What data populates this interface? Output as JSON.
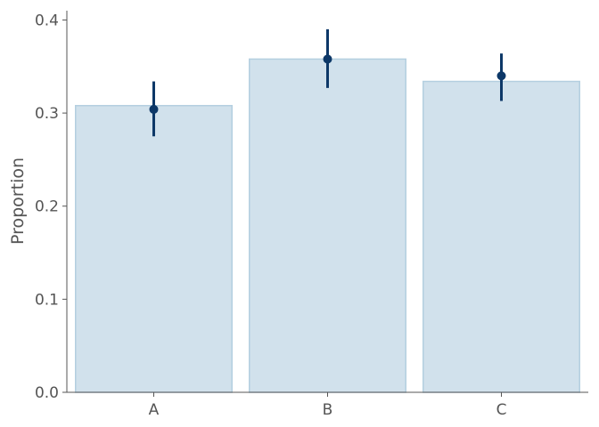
{
  "chart_data": {
    "type": "bar",
    "title": "",
    "xlabel": "",
    "ylabel": "Proportion",
    "categories": [
      "A",
      "B",
      "C"
    ],
    "bar_values": [
      0.308,
      0.358,
      0.334
    ],
    "point_estimates": [
      0.304,
      0.358,
      0.34
    ],
    "error_low": [
      0.275,
      0.327,
      0.313
    ],
    "error_high": [
      0.334,
      0.39,
      0.364
    ],
    "ylim": [
      0,
      0.41
    ],
    "yticks": [
      0.0,
      0.1,
      0.2,
      0.3,
      0.4
    ],
    "ytick_labels": [
      "0.0",
      "0.1",
      "0.2",
      "0.3",
      "0.4"
    ],
    "grid": false,
    "legend": "none",
    "colors": {
      "bar_fill": "#d1e1ec",
      "bar_edge": "#b4cfe0",
      "point": "#0d3868",
      "axis": "#555555"
    }
  }
}
